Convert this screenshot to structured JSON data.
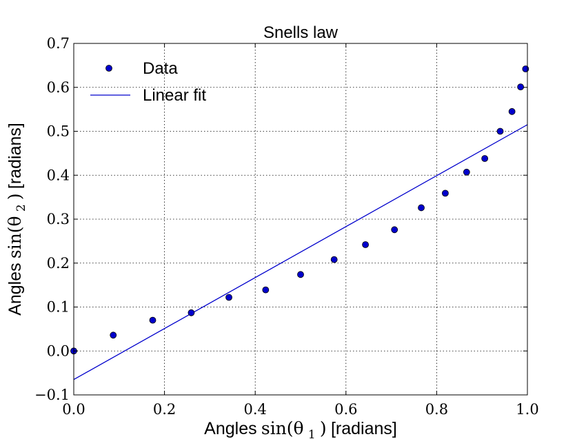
{
  "chart_data": {
    "type": "scatter",
    "title": "Snells law",
    "xlabel": {
      "prefix": "Angles",
      "math": "sin(θ",
      "sub": "1",
      "close": ")",
      "suffix": " [radians]"
    },
    "ylabel": {
      "prefix": "Angles",
      "math": "sin(θ",
      "sub": "2",
      "close": ")",
      "suffix": " [radians]"
    },
    "xlim": [
      0.0,
      1.0
    ],
    "ylim": [
      -0.1,
      0.7
    ],
    "xticks": [
      "0.0",
      "0.2",
      "0.4",
      "0.6",
      "0.8",
      "1.0"
    ],
    "yticks": [
      "−0.1",
      "0.0",
      "0.1",
      "0.2",
      "0.3",
      "0.4",
      "0.5",
      "0.6",
      "0.7"
    ],
    "grid": true,
    "legend_position": "top-left",
    "series": [
      {
        "name": "Data",
        "kind": "markers",
        "color": "#0000cc",
        "x": [
          0.0,
          0.087,
          0.174,
          0.259,
          0.342,
          0.423,
          0.5,
          0.574,
          0.643,
          0.707,
          0.766,
          0.819,
          0.866,
          0.906,
          0.94,
          0.966,
          0.985,
          0.996
        ],
        "y": [
          0.0,
          0.036,
          0.07,
          0.087,
          0.122,
          0.139,
          0.174,
          0.208,
          0.242,
          0.276,
          0.326,
          0.359,
          0.407,
          0.438,
          0.5,
          0.545,
          0.601,
          0.642
        ]
      },
      {
        "name": "Linear fit",
        "kind": "line",
        "color": "#0000cc",
        "x": [
          0.0,
          1.0
        ],
        "y": [
          -0.065,
          0.515
        ]
      }
    ]
  }
}
